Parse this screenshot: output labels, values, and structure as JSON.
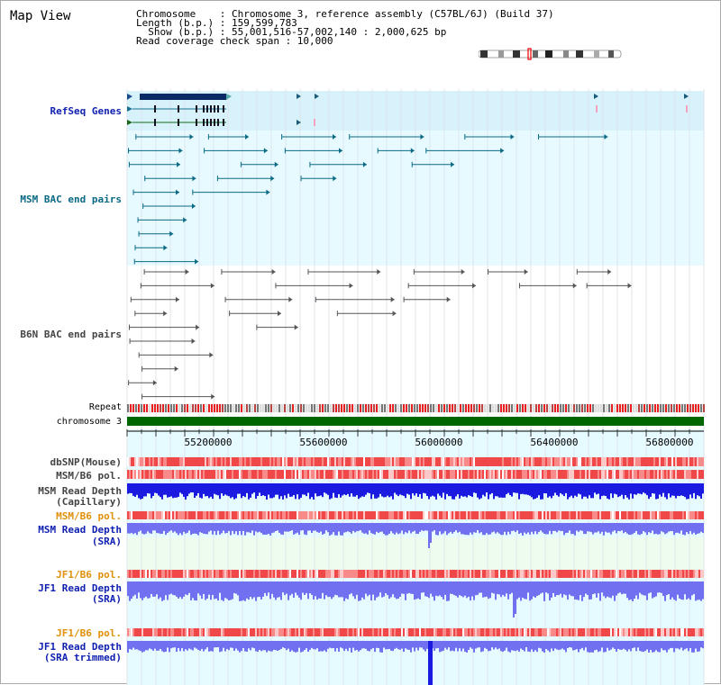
{
  "view_title": "Map View",
  "info": {
    "chromosome": "Chromosome    : Chromosome 3, reference assembly (C57BL/6J) (Build 37)",
    "length": "Length (b.p.) : 159,599,783",
    "show": "  Show (b.p.) : 55,001,516-57,002,140 : 2,000,625 bp",
    "coverage": "Read coverage check span : 10,000"
  },
  "axis": {
    "ticks": [
      "55200000",
      "55600000",
      "56000000",
      "56400000",
      "56800000"
    ]
  },
  "tracks": {
    "refseq": "RefSeq Genes",
    "msm_bac": "MSM BAC end pairs",
    "b6n_bac": "B6N BAC end pairs",
    "repeat": "Repeat",
    "chromosome": "chromosome 3",
    "dbsnp": "dbSNP(Mouse)",
    "msm_pol": "MSM/B6 pol.",
    "msm_depth_cap_1": "MSM Read Depth",
    "msm_depth_cap_2": "(Capillary)",
    "msm_pol_sra": "MSM/B6 pol.",
    "msm_depth_sra_1": "MSM Read Depth",
    "msm_depth_sra_2": "(SRA)",
    "jf1_pol_1": "JF1/B6 pol.",
    "jf1_depth_1": "JF1 Read Depth",
    "jf1_depth_2": "(SRA)",
    "jf1_pol_2": "JF1/B6 pol.",
    "jf1_trim_1": "JF1 Read Depth",
    "jf1_trim_2": "(SRA trimmed)"
  },
  "colors": {
    "track_bg": "#e6faff",
    "refseq_bg": "#d8f2fc",
    "msm_bac": "#0a6a84",
    "b6n_bac": "#555555",
    "chromosome": "#006600",
    "pol_red": "#f03030",
    "depth_blue": "#1a1ae0",
    "depth_light": "#7070f0"
  }
}
